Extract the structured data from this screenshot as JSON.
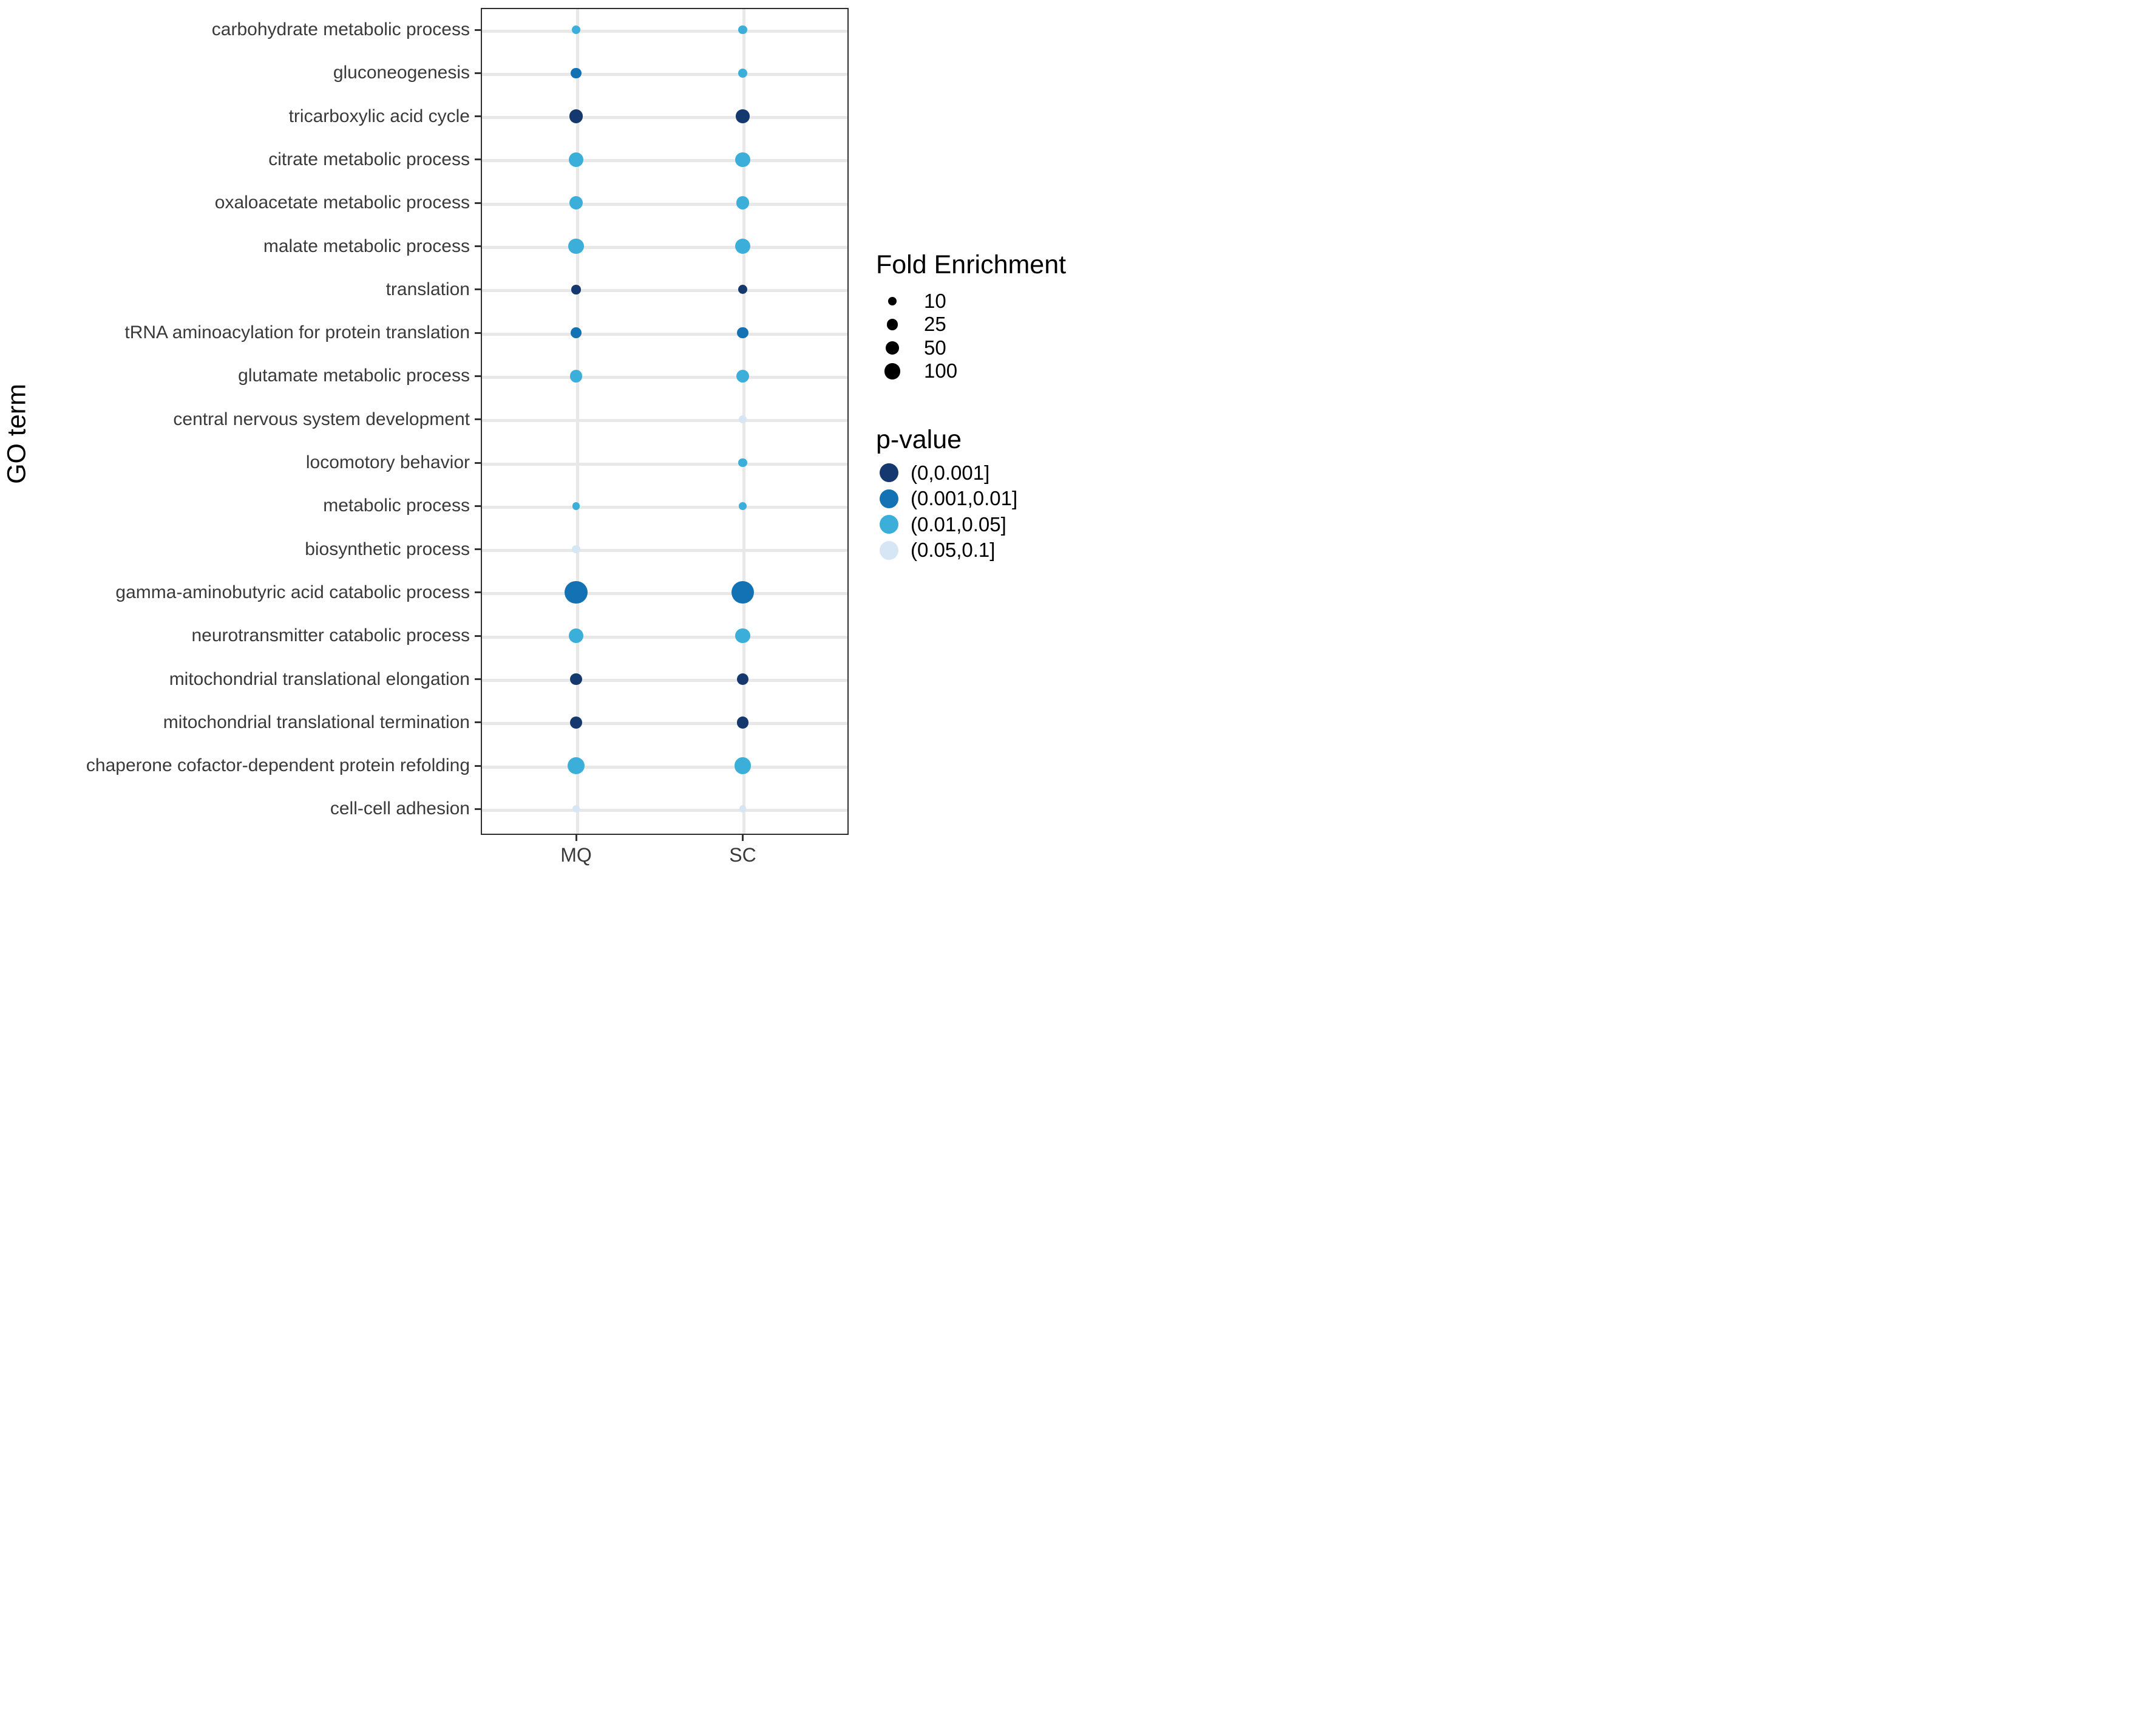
{
  "chart_data": {
    "type": "scatter",
    "subtype": "bubble-dot-plot",
    "title": "",
    "xlabel": "",
    "ylabel": "GO term",
    "x_categories": [
      "MQ",
      "SC"
    ],
    "y_categories": [
      "carbohydrate metabolic process",
      "gluconeogenesis",
      "tricarboxylic acid cycle",
      "citrate metabolic process",
      "oxaloacetate metabolic process",
      "malate metabolic process",
      "translation",
      "tRNA aminoacylation for protein translation",
      "glutamate metabolic process",
      "central nervous system development",
      "locomotory behavior",
      "metabolic process",
      "biosynthetic process",
      "gamma-aminobutyric acid catabolic process",
      "neurotransmitter catabolic process",
      "mitochondrial translational elongation",
      "mitochondrial translational termination",
      "chaperone cofactor-dependent protein refolding",
      "cell-cell adhesion"
    ],
    "grid": "on",
    "legend_position": "right",
    "size_legend": {
      "title": "Fold Enrichment",
      "values": [
        10,
        25,
        50,
        100
      ]
    },
    "color_legend": {
      "title": "p-value",
      "bins": [
        {
          "label": "(0,0.001]",
          "color": "#15386f"
        },
        {
          "label": "(0.001,0.01]",
          "color": "#1272b3"
        },
        {
          "label": "(0.01,0.05]",
          "color": "#3bafd9"
        },
        {
          "label": "(0.05,0.1]",
          "color": "#d6e6f5"
        }
      ]
    },
    "points": [
      {
        "go": "carbohydrate metabolic process",
        "x": "MQ",
        "fold": 7,
        "p": "(0.01,0.05]"
      },
      {
        "go": "carbohydrate metabolic process",
        "x": "SC",
        "fold": 8,
        "p": "(0.01,0.05]"
      },
      {
        "go": "gluconeogenesis",
        "x": "MQ",
        "fold": 20,
        "p": "(0.001,0.01]"
      },
      {
        "go": "gluconeogenesis",
        "x": "SC",
        "fold": 10,
        "p": "(0.01,0.05]"
      },
      {
        "go": "tricarboxylic acid cycle",
        "x": "MQ",
        "fold": 58,
        "p": "(0,0.001]"
      },
      {
        "go": "tricarboxylic acid cycle",
        "x": "SC",
        "fold": 55,
        "p": "(0,0.001]"
      },
      {
        "go": "citrate metabolic process",
        "x": "MQ",
        "fold": 72,
        "p": "(0.01,0.05]"
      },
      {
        "go": "citrate metabolic process",
        "x": "SC",
        "fold": 69,
        "p": "(0.01,0.05]"
      },
      {
        "go": "oxaloacetate metabolic process",
        "x": "MQ",
        "fold": 51,
        "p": "(0.01,0.05]"
      },
      {
        "go": "oxaloacetate metabolic process",
        "x": "SC",
        "fold": 51,
        "p": "(0.01,0.05]"
      },
      {
        "go": "malate metabolic process",
        "x": "MQ",
        "fold": 79,
        "p": "(0.01,0.05]"
      },
      {
        "go": "malate metabolic process",
        "x": "SC",
        "fold": 79,
        "p": "(0.01,0.05]"
      },
      {
        "go": "translation",
        "x": "MQ",
        "fold": 12,
        "p": "(0,0.001]"
      },
      {
        "go": "translation",
        "x": "SC",
        "fold": 10,
        "p": "(0,0.001]"
      },
      {
        "go": "tRNA aminoacylation for protein translation",
        "x": "MQ",
        "fold": 24,
        "p": "(0.001,0.01]"
      },
      {
        "go": "tRNA aminoacylation for protein translation",
        "x": "SC",
        "fold": 26,
        "p": "(0.001,0.01]"
      },
      {
        "go": "glutamate metabolic process",
        "x": "MQ",
        "fold": 43,
        "p": "(0.01,0.05]"
      },
      {
        "go": "glutamate metabolic process",
        "x": "SC",
        "fold": 43,
        "p": "(0.01,0.05]"
      },
      {
        "go": "central nervous system development",
        "x": "SC",
        "fold": 4,
        "p": "(0.05,0.1]"
      },
      {
        "go": "locomotory behavior",
        "x": "SC",
        "fold": 7,
        "p": "(0.01,0.05]"
      },
      {
        "go": "metabolic process",
        "x": "MQ",
        "fold": 3,
        "p": "(0.01,0.05]"
      },
      {
        "go": "metabolic process",
        "x": "SC",
        "fold": 3,
        "p": "(0.01,0.05]"
      },
      {
        "go": "biosynthetic process",
        "x": "MQ",
        "fold": 5,
        "p": "(0.05,0.1]"
      },
      {
        "go": "gamma-aminobutyric acid catabolic process",
        "x": "MQ",
        "fold": 250,
        "p": "(0.001,0.01]"
      },
      {
        "go": "gamma-aminobutyric acid catabolic process",
        "x": "SC",
        "fold": 245,
        "p": "(0.001,0.01]"
      },
      {
        "go": "neurotransmitter catabolic process",
        "x": "MQ",
        "fold": 69,
        "p": "(0.01,0.05]"
      },
      {
        "go": "neurotransmitter catabolic process",
        "x": "SC",
        "fold": 69,
        "p": "(0.01,0.05]"
      },
      {
        "go": "mitochondrial translational elongation",
        "x": "MQ",
        "fold": 36,
        "p": "(0,0.001]"
      },
      {
        "go": "mitochondrial translational elongation",
        "x": "SC",
        "fold": 36,
        "p": "(0,0.001]"
      },
      {
        "go": "mitochondrial translational termination",
        "x": "MQ",
        "fold": 36,
        "p": "(0,0.001]"
      },
      {
        "go": "mitochondrial translational termination",
        "x": "SC",
        "fold": 36,
        "p": "(0,0.001]"
      },
      {
        "go": "chaperone cofactor-dependent protein refolding",
        "x": "MQ",
        "fold": 118,
        "p": "(0.01,0.05]"
      },
      {
        "go": "chaperone cofactor-dependent protein refolding",
        "x": "SC",
        "fold": 110,
        "p": "(0.01,0.05]"
      },
      {
        "go": "cell-cell adhesion",
        "x": "MQ",
        "fold": 2,
        "p": "(0.05,0.1]"
      },
      {
        "go": "cell-cell adhesion",
        "x": "SC",
        "fold": 2,
        "p": "(0.05,0.1]"
      }
    ]
  }
}
